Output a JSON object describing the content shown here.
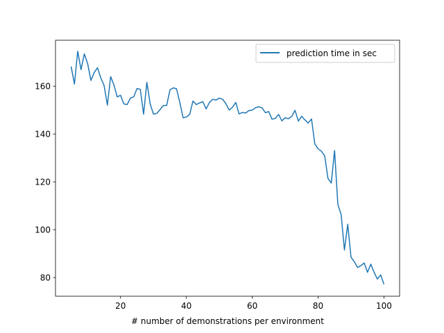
{
  "chart_data": {
    "type": "line",
    "xlabel": "# number of demonstrations per environment",
    "ylabel": "",
    "xlim": [
      0.25,
      104.75
    ],
    "ylim": [
      72.2,
      179.2
    ],
    "x_ticks": [
      20,
      40,
      60,
      80,
      100
    ],
    "y_ticks": [
      80,
      100,
      120,
      140,
      160
    ],
    "grid": false,
    "legend": {
      "placement": "top-right"
    },
    "series": [
      {
        "name": "prediction time in sec",
        "color": "#1f77b4",
        "x": [
          5,
          6,
          7,
          8,
          9,
          10,
          11,
          12,
          13,
          14,
          15,
          16,
          17,
          18,
          19,
          20,
          21,
          22,
          23,
          24,
          25,
          26,
          27,
          28,
          29,
          30,
          31,
          32,
          33,
          34,
          35,
          36,
          37,
          38,
          39,
          40,
          41,
          42,
          43,
          44,
          45,
          46,
          47,
          48,
          49,
          50,
          51,
          52,
          53,
          54,
          55,
          56,
          57,
          58,
          59,
          60,
          61,
          62,
          63,
          64,
          65,
          66,
          67,
          68,
          69,
          70,
          71,
          72,
          73,
          74,
          75,
          76,
          77,
          78,
          79,
          80,
          81,
          82,
          83,
          84,
          85,
          86,
          87,
          88,
          89,
          90,
          91,
          92,
          93,
          94,
          95,
          96,
          97,
          98,
          99,
          100
        ],
        "values": [
          168.2,
          160.9,
          174.6,
          166.9,
          173.5,
          169.5,
          162.4,
          165.7,
          167.7,
          163.5,
          160.3,
          152.1,
          164.0,
          160.5,
          155.5,
          156.2,
          152.6,
          152.3,
          155.0,
          155.5,
          159.0,
          158.7,
          148.3,
          161.6,
          152.6,
          148.3,
          148.6,
          150.2,
          151.9,
          151.9,
          158.4,
          159.3,
          158.9,
          153.2,
          146.8,
          147.1,
          148.2,
          153.8,
          152.3,
          153.0,
          153.5,
          150.5,
          153.2,
          154.5,
          154.2,
          155.0,
          154.5,
          152.7,
          150.0,
          151.2,
          153.2,
          148.4,
          149.0,
          148.8,
          149.8,
          150.0,
          151.0,
          151.4,
          150.9,
          148.9,
          149.4,
          146.2,
          146.5,
          148.2,
          145.5,
          146.8,
          146.4,
          147.4,
          149.9,
          145.4,
          147.4,
          145.9,
          144.6,
          146.3,
          135.9,
          133.8,
          132.8,
          130.9,
          121.4,
          119.5,
          133.1,
          110.6,
          106.3,
          91.5,
          102.3,
          88.5,
          86.6,
          84.2,
          85.0,
          86.1,
          82.2,
          85.6,
          82.2,
          79.4,
          81.1,
          77.2
        ]
      }
    ]
  }
}
